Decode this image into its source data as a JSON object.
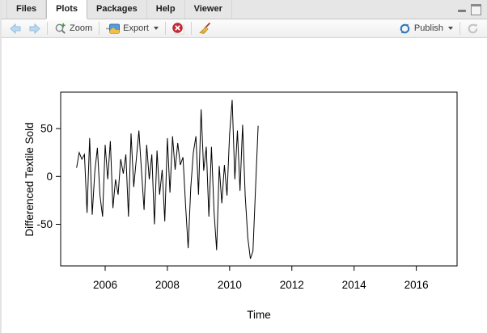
{
  "tabs": [
    {
      "label": "Files",
      "active": false
    },
    {
      "label": "Plots",
      "active": true
    },
    {
      "label": "Packages",
      "active": false
    },
    {
      "label": "Help",
      "active": false
    },
    {
      "label": "Viewer",
      "active": false
    }
  ],
  "window_controls": {
    "icons": [
      "minimize-icon",
      "maximize-icon"
    ]
  },
  "toolbar": {
    "back_icon": "back-arrow-icon (disabled)",
    "forward_icon": "forward-arrow-icon (disabled)",
    "zoom_label": "Zoom",
    "export_label": "Export",
    "remove_plot_icon": "red-circle-x-icon",
    "clear_all_icon": "broom-icon",
    "publish_label": "Publish",
    "refresh_icon": "refresh-icon (disabled)"
  },
  "colors": {
    "tab_bar_bg": "#e6e6e6",
    "active_tab_bg": "#ffffff",
    "disabled_arrow_blue": "#b3d1ea",
    "zoom_plus_green": "#3faa36",
    "remove_red": "#cc2936",
    "broom_yellow": "#e6b94d",
    "publish_blue": "#2e77bb",
    "plot_line": "#000000"
  },
  "chart_data": {
    "type": "line",
    "title": "",
    "xlabel": "Time",
    "ylabel": "Differenced Textile Sold",
    "x_ticks": [
      2006,
      2008,
      2010,
      2012,
      2014,
      2016
    ],
    "y_ticks": [
      -50,
      0,
      50
    ],
    "xlim": [
      2004.57,
      2017.31
    ],
    "ylim": [
      -93.5,
      88.1
    ],
    "grid": false,
    "legend": false,
    "line_color": "#000000",
    "x_start": 2005.0833,
    "x_step": 0.083333,
    "values": [
      9,
      25,
      18,
      23,
      -38,
      40,
      -40,
      5,
      30,
      -20,
      -42,
      33,
      -3,
      37,
      -33,
      -3,
      -19,
      18,
      3,
      23,
      -42,
      45,
      -11,
      18,
      48,
      6,
      -35,
      33,
      -3,
      23,
      -50,
      27,
      -19,
      7,
      -47,
      40,
      -17,
      42,
      7,
      35,
      12,
      20,
      -30,
      -75,
      -12,
      25,
      42,
      -19,
      70,
      6,
      31,
      -42,
      31,
      -37,
      -77,
      11,
      -28,
      12,
      -20,
      44,
      80,
      -3,
      48,
      -15,
      54,
      -20,
      -64,
      -86,
      -78,
      -12,
      53
    ]
  }
}
